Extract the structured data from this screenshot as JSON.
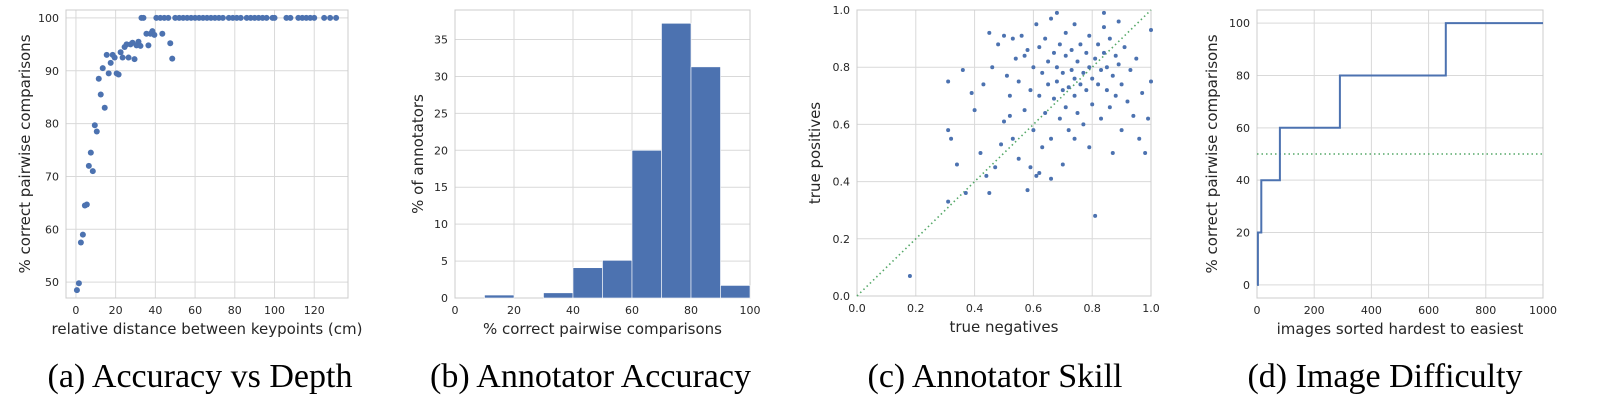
{
  "captions": {
    "a": "(a)  Accuracy vs Depth",
    "b": "(b)  Annotator Accuracy",
    "c": "(c)  Annotator Skill",
    "d": "(d)  Image Difficulty"
  },
  "chart_data": [
    {
      "type": "scatter",
      "xlabel": "relative distance between keypoints (cm)",
      "ylabel": "% correct pairwise comparisons",
      "xlim": [
        -5,
        137
      ],
      "ylim": [
        47,
        101.5
      ],
      "xticks": [
        0,
        20,
        40,
        60,
        80,
        100,
        120
      ],
      "yticks": [
        50,
        60,
        70,
        80,
        90,
        100
      ],
      "grid": true,
      "color": "#4c72b0",
      "points": [
        [
          0.5,
          48.5
        ],
        [
          1.5,
          49.8
        ],
        [
          2.5,
          57.5
        ],
        [
          3.5,
          59
        ],
        [
          4.5,
          64.5
        ],
        [
          5.5,
          64.7
        ],
        [
          6.5,
          72
        ],
        [
          7.5,
          74.5
        ],
        [
          8.5,
          71
        ],
        [
          9.5,
          79.7
        ],
        [
          10.5,
          78.5
        ],
        [
          11.5,
          88.5
        ],
        [
          12.5,
          85.5
        ],
        [
          13.5,
          90.5
        ],
        [
          14.5,
          83
        ],
        [
          15.5,
          93
        ],
        [
          16.5,
          89.5
        ],
        [
          17.5,
          91.5
        ],
        [
          18.5,
          93
        ],
        [
          19.5,
          92.5
        ],
        [
          20.5,
          89.5
        ],
        [
          21.5,
          89.3
        ],
        [
          22.5,
          93.5
        ],
        [
          23.5,
          92.5
        ],
        [
          24.5,
          94.5
        ],
        [
          25.5,
          95
        ],
        [
          26.5,
          92.5
        ],
        [
          27.5,
          95
        ],
        [
          28.5,
          95.3
        ],
        [
          29.5,
          92.2
        ],
        [
          30.5,
          94.8
        ],
        [
          31.5,
          95.5
        ],
        [
          32.5,
          94.7
        ],
        [
          33,
          100
        ],
        [
          34,
          100
        ],
        [
          35.5,
          97
        ],
        [
          36.5,
          94.8
        ],
        [
          37.5,
          97
        ],
        [
          38.5,
          97.5
        ],
        [
          39.5,
          96.8
        ],
        [
          40.5,
          100
        ],
        [
          42.5,
          100
        ],
        [
          43.5,
          97
        ],
        [
          44.5,
          100
        ],
        [
          46.5,
          100
        ],
        [
          47.5,
          95.2
        ],
        [
          48.5,
          92.3
        ],
        [
          50,
          100
        ],
        [
          52,
          100
        ],
        [
          54,
          100
        ],
        [
          56,
          100
        ],
        [
          58,
          100
        ],
        [
          60,
          100
        ],
        [
          62,
          100
        ],
        [
          64,
          100
        ],
        [
          66,
          100
        ],
        [
          68,
          100
        ],
        [
          70,
          100
        ],
        [
          72,
          100
        ],
        [
          74,
          100
        ],
        [
          77,
          100
        ],
        [
          79,
          100
        ],
        [
          81,
          100
        ],
        [
          83,
          100
        ],
        [
          86,
          100
        ],
        [
          88,
          100
        ],
        [
          90,
          100
        ],
        [
          92,
          100
        ],
        [
          94,
          100
        ],
        [
          96,
          100
        ],
        [
          99,
          100
        ],
        [
          100,
          100
        ],
        [
          106,
          100
        ],
        [
          108,
          100
        ],
        [
          112,
          100
        ],
        [
          114,
          100
        ],
        [
          116,
          100
        ],
        [
          118,
          100
        ],
        [
          120,
          100
        ],
        [
          125,
          100
        ],
        [
          128,
          100
        ],
        [
          131,
          100
        ]
      ]
    },
    {
      "type": "bar",
      "xlabel": "% correct pairwise comparisons",
      "ylabel": "% of annotators",
      "xlim": [
        0,
        100
      ],
      "ylim": [
        0,
        39
      ],
      "xticks": [
        0,
        20,
        40,
        60,
        80,
        100
      ],
      "yticks": [
        0,
        5,
        10,
        15,
        20,
        25,
        30,
        35
      ],
      "grid": true,
      "color": "#4c72b0",
      "bins": [
        {
          "x0": 10,
          "x1": 20,
          "value": 0.4
        },
        {
          "x0": 20,
          "x1": 30,
          "value": 0
        },
        {
          "x0": 30,
          "x1": 40,
          "value": 0.7
        },
        {
          "x0": 40,
          "x1": 50,
          "value": 4.1
        },
        {
          "x0": 50,
          "x1": 60,
          "value": 5.1
        },
        {
          "x0": 60,
          "x1": 70,
          "value": 20
        },
        {
          "x0": 70,
          "x1": 80,
          "value": 37.2
        },
        {
          "x0": 80,
          "x1": 90,
          "value": 31.3
        },
        {
          "x0": 90,
          "x1": 100,
          "value": 1.7
        }
      ]
    },
    {
      "type": "scatter",
      "xlabel": "true negatives",
      "ylabel": "true positives",
      "xlim": [
        0,
        1
      ],
      "ylim": [
        0,
        1
      ],
      "xticks": [
        0.0,
        0.2,
        0.4,
        0.6,
        0.8,
        1.0
      ],
      "yticks": [
        0.0,
        0.2,
        0.4,
        0.6,
        0.8,
        1.0
      ],
      "grid": true,
      "color": "#4c72b0",
      "reference_line": {
        "from": [
          0,
          0
        ],
        "to": [
          1,
          1
        ],
        "color": "#55a868",
        "style": "dotted"
      },
      "points": [
        [
          0.18,
          0.07
        ],
        [
          0.31,
          0.33
        ],
        [
          0.31,
          0.58
        ],
        [
          0.31,
          0.75
        ],
        [
          0.32,
          0.55
        ],
        [
          0.34,
          0.46
        ],
        [
          0.36,
          0.79
        ],
        [
          0.37,
          0.36
        ],
        [
          0.39,
          0.71
        ],
        [
          0.4,
          0.65
        ],
        [
          0.42,
          0.5
        ],
        [
          0.43,
          0.74
        ],
        [
          0.44,
          0.42
        ],
        [
          0.45,
          0.36
        ],
        [
          0.45,
          0.92
        ],
        [
          0.46,
          0.8
        ],
        [
          0.47,
          0.45
        ],
        [
          0.48,
          0.88
        ],
        [
          0.49,
          0.53
        ],
        [
          0.5,
          0.61
        ],
        [
          0.5,
          0.91
        ],
        [
          0.51,
          0.77
        ],
        [
          0.52,
          0.63
        ],
        [
          0.52,
          0.7
        ],
        [
          0.53,
          0.55
        ],
        [
          0.54,
          0.83
        ],
        [
          0.55,
          0.48
        ],
        [
          0.55,
          0.75
        ],
        [
          0.56,
          0.91
        ],
        [
          0.57,
          0.65
        ],
        [
          0.58,
          0.37
        ],
        [
          0.58,
          0.86
        ],
        [
          0.59,
          0.72
        ],
        [
          0.59,
          0.45
        ],
        [
          0.6,
          0.8
        ],
        [
          0.6,
          0.58
        ],
        [
          0.61,
          0.42
        ],
        [
          0.61,
          0.95
        ],
        [
          0.62,
          0.7
        ],
        [
          0.62,
          0.87
        ],
        [
          0.63,
          0.52
        ],
        [
          0.63,
          0.78
        ],
        [
          0.64,
          0.64
        ],
        [
          0.64,
          0.9
        ],
        [
          0.65,
          0.74
        ],
        [
          0.65,
          0.82
        ],
        [
          0.66,
          0.55
        ],
        [
          0.66,
          0.97
        ],
        [
          0.67,
          0.69
        ],
        [
          0.67,
          0.85
        ],
        [
          0.68,
          0.75
        ],
        [
          0.68,
          0.8
        ],
        [
          0.69,
          0.62
        ],
        [
          0.69,
          0.88
        ],
        [
          0.7,
          0.72
        ],
        [
          0.7,
          0.78
        ],
        [
          0.71,
          0.66
        ],
        [
          0.71,
          0.84
        ],
        [
          0.71,
          0.92
        ],
        [
          0.72,
          0.73
        ],
        [
          0.72,
          0.58
        ],
        [
          0.73,
          0.79
        ],
        [
          0.73,
          0.86
        ],
        [
          0.74,
          0.7
        ],
        [
          0.74,
          0.76
        ],
        [
          0.74,
          0.95
        ],
        [
          0.75,
          0.64
        ],
        [
          0.75,
          0.82
        ],
        [
          0.76,
          0.74
        ],
        [
          0.76,
          0.88
        ],
        [
          0.77,
          0.78
        ],
        [
          0.77,
          0.6
        ],
        [
          0.78,
          0.85
        ],
        [
          0.78,
          0.72
        ],
        [
          0.79,
          0.8
        ],
        [
          0.79,
          0.91
        ],
        [
          0.8,
          0.76
        ],
        [
          0.8,
          0.67
        ],
        [
          0.81,
          0.83
        ],
        [
          0.81,
          0.28
        ],
        [
          0.82,
          0.74
        ],
        [
          0.82,
          0.88
        ],
        [
          0.83,
          0.79
        ],
        [
          0.83,
          0.62
        ],
        [
          0.84,
          0.85
        ],
        [
          0.84,
          0.94
        ],
        [
          0.85,
          0.72
        ],
        [
          0.85,
          0.8
        ],
        [
          0.86,
          0.66
        ],
        [
          0.86,
          0.9
        ],
        [
          0.87,
          0.77
        ],
        [
          0.87,
          0.5
        ],
        [
          0.88,
          0.84
        ],
        [
          0.88,
          0.7
        ],
        [
          0.89,
          0.81
        ],
        [
          0.89,
          0.96
        ],
        [
          0.9,
          0.74
        ],
        [
          0.9,
          0.58
        ],
        [
          0.91,
          0.87
        ],
        [
          0.92,
          0.68
        ],
        [
          0.93,
          0.79
        ],
        [
          0.94,
          0.63
        ],
        [
          0.95,
          0.83
        ],
        [
          0.96,
          0.55
        ],
        [
          0.97,
          0.71
        ],
        [
          0.98,
          0.5
        ],
        [
          0.99,
          0.62
        ],
        [
          1.0,
          0.75
        ],
        [
          1.0,
          0.93
        ],
        [
          0.66,
          0.41
        ],
        [
          0.7,
          0.46
        ],
        [
          0.74,
          0.55
        ],
        [
          0.79,
          0.52
        ],
        [
          0.68,
          0.99
        ],
        [
          0.84,
          0.99
        ],
        [
          0.62,
          0.43
        ],
        [
          0.57,
          0.84
        ],
        [
          0.53,
          0.9
        ]
      ]
    },
    {
      "type": "line",
      "xlabel": "images sorted hardest to easiest",
      "ylabel": "% correct pairwise comparisons",
      "xlim": [
        0,
        1000
      ],
      "ylim": [
        -5,
        105
      ],
      "xticks": [
        0,
        200,
        400,
        600,
        800,
        1000
      ],
      "yticks": [
        0,
        20,
        40,
        60,
        80,
        100
      ],
      "grid": true,
      "color": "#4c72b0",
      "reference_line": {
        "y": 50,
        "color": "#55a868",
        "style": "dotted"
      },
      "steps": [
        [
          0,
          0
        ],
        [
          3,
          0
        ],
        [
          3,
          20
        ],
        [
          15,
          20
        ],
        [
          15,
          40
        ],
        [
          80,
          40
        ],
        [
          80,
          60
        ],
        [
          290,
          60
        ],
        [
          290,
          80
        ],
        [
          660,
          80
        ],
        [
          660,
          100
        ],
        [
          1000,
          100
        ]
      ]
    }
  ]
}
